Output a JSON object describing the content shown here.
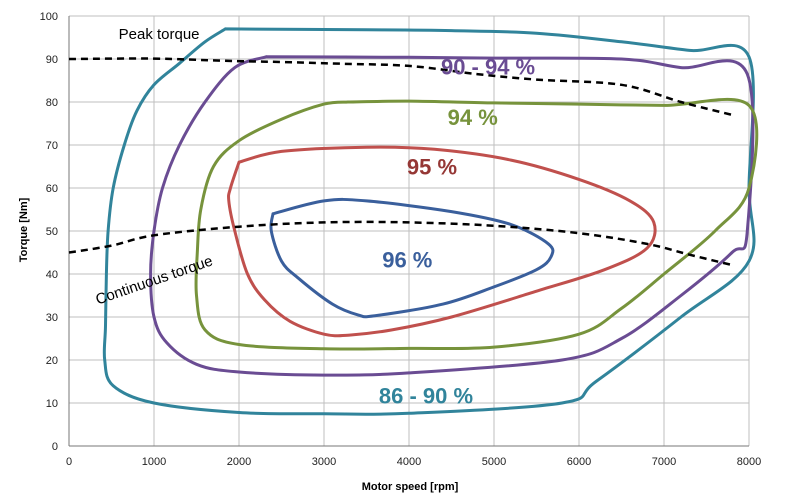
{
  "chart_data": {
    "type": "line",
    "title": "",
    "xlabel": "Motor speed [rpm]",
    "ylabel": "Torque [Nm]",
    "xlim": [
      0,
      8000
    ],
    "ylim": [
      0,
      100
    ],
    "x_ticks": [
      "0",
      "1000",
      "2000",
      "3000",
      "4000",
      "5000",
      "6000",
      "7000",
      "8000"
    ],
    "y_ticks": [
      "0",
      "10",
      "20",
      "30",
      "40",
      "50",
      "60",
      "70",
      "80",
      "90",
      "100"
    ],
    "grid": true,
    "legend": "none",
    "series": [
      {
        "name": "86 - 90 %",
        "color": "#31849b",
        "points": [
          [
            1840,
            97
          ],
          [
            3500,
            96.8
          ],
          [
            4500,
            96.6
          ],
          [
            5500,
            96
          ],
          [
            6500,
            94
          ],
          [
            7300,
            92
          ],
          [
            8000,
            90.5
          ],
          [
            8000,
            60
          ],
          [
            8000,
            43
          ],
          [
            7200,
            30
          ],
          [
            6200,
            15
          ],
          [
            5800,
            10
          ],
          [
            4000,
            7.6
          ],
          [
            3000,
            7.5
          ],
          [
            2000,
            7.8
          ],
          [
            1000,
            10
          ],
          [
            520,
            14
          ],
          [
            420,
            20
          ],
          [
            430,
            28
          ],
          [
            440,
            40
          ],
          [
            460,
            50
          ],
          [
            520,
            60
          ],
          [
            650,
            70
          ],
          [
            800,
            78
          ],
          [
            1000,
            84
          ],
          [
            1300,
            89
          ],
          [
            1600,
            94
          ],
          [
            1840,
            97
          ]
        ]
      },
      {
        "name": "90 - 94 %",
        "color": "#6a4c93",
        "points": [
          [
            2320,
            90.5
          ],
          [
            4000,
            90.4
          ],
          [
            5000,
            90.2
          ],
          [
            6500,
            90
          ],
          [
            7200,
            88
          ],
          [
            7980,
            86.5
          ],
          [
            7980,
            50
          ],
          [
            7800,
            45
          ],
          [
            7200,
            35
          ],
          [
            6500,
            25
          ],
          [
            5800,
            20
          ],
          [
            4000,
            17
          ],
          [
            3000,
            16.5
          ],
          [
            2000,
            17.2
          ],
          [
            1500,
            19
          ],
          [
            1150,
            24
          ],
          [
            1000,
            30
          ],
          [
            960,
            40
          ],
          [
            1000,
            50
          ],
          [
            1100,
            60
          ],
          [
            1300,
            70
          ],
          [
            1600,
            80
          ],
          [
            1950,
            88
          ],
          [
            2320,
            90.5
          ]
        ]
      },
      {
        "name": "94 %",
        "color": "#77933c",
        "points": [
          [
            3280,
            80
          ],
          [
            4000,
            80.2
          ],
          [
            5000,
            79.8
          ],
          [
            6000,
            79.5
          ],
          [
            7000,
            79.2
          ],
          [
            8000,
            79.2
          ],
          [
            8000,
            60
          ],
          [
            7600,
            50
          ],
          [
            7000,
            40
          ],
          [
            6500,
            32
          ],
          [
            6000,
            26
          ],
          [
            5000,
            23
          ],
          [
            4000,
            22.7
          ],
          [
            3000,
            22.6
          ],
          [
            2000,
            23.6
          ],
          [
            1600,
            27
          ],
          [
            1500,
            35
          ],
          [
            1510,
            45
          ],
          [
            1550,
            55
          ],
          [
            1700,
            65
          ],
          [
            2000,
            71
          ],
          [
            2500,
            76
          ],
          [
            3000,
            79.5
          ],
          [
            3280,
            80
          ]
        ]
      },
      {
        "name": "95 %",
        "color": "#c0504d",
        "points": [
          [
            2000,
            66
          ],
          [
            2500,
            68.5
          ],
          [
            3500,
            69.5
          ],
          [
            4300,
            69
          ],
          [
            5200,
            66.5
          ],
          [
            6000,
            62
          ],
          [
            6600,
            57
          ],
          [
            6880,
            52
          ],
          [
            6800,
            46
          ],
          [
            6300,
            41
          ],
          [
            5500,
            36
          ],
          [
            4500,
            30
          ],
          [
            3800,
            27
          ],
          [
            3300,
            25.8
          ],
          [
            3000,
            26
          ],
          [
            2600,
            29
          ],
          [
            2300,
            34
          ],
          [
            2100,
            40
          ],
          [
            1950,
            50
          ],
          [
            1880,
            57
          ],
          [
            1900,
            60
          ],
          [
            2000,
            66
          ]
        ]
      },
      {
        "name": "96 %",
        "color": "#3a5f9c",
        "points": [
          [
            2400,
            54
          ],
          [
            3000,
            57
          ],
          [
            3500,
            57
          ],
          [
            4500,
            54.5
          ],
          [
            5200,
            51.5
          ],
          [
            5640,
            47
          ],
          [
            5670,
            44
          ],
          [
            5500,
            41
          ],
          [
            5000,
            37
          ],
          [
            4400,
            33
          ],
          [
            3600,
            30.3
          ],
          [
            3400,
            30.5
          ],
          [
            3100,
            33
          ],
          [
            2700,
            39
          ],
          [
            2500,
            43
          ],
          [
            2380,
            50
          ],
          [
            2400,
            54
          ]
        ]
      },
      {
        "name": "Peak torque",
        "color": "#000000",
        "dashed": true,
        "points": [
          [
            0,
            90
          ],
          [
            1000,
            90.1
          ],
          [
            1800,
            89.6
          ],
          [
            2500,
            89.3
          ],
          [
            3200,
            88.9
          ],
          [
            4000,
            88.4
          ],
          [
            4800,
            86.5
          ],
          [
            5500,
            85.2
          ],
          [
            6500,
            84
          ],
          [
            7200,
            80
          ],
          [
            7800,
            77
          ]
        ]
      },
      {
        "name": "Continuous torque",
        "color": "#000000",
        "dashed": true,
        "points": [
          [
            0,
            45
          ],
          [
            500,
            46.6
          ],
          [
            1000,
            49
          ],
          [
            2000,
            51
          ],
          [
            3000,
            52
          ],
          [
            4000,
            52
          ],
          [
            5000,
            51.2
          ],
          [
            6000,
            49.5
          ],
          [
            6800,
            47
          ],
          [
            7300,
            44.5
          ],
          [
            7800,
            42.1
          ]
        ]
      }
    ],
    "annotations": [
      {
        "text": "Peak torque",
        "kind": "env",
        "x": 1060,
        "y": 94.7,
        "rotate": 0
      },
      {
        "text": "Continuous torque",
        "kind": "env",
        "x": 1020,
        "y": 37.5,
        "rotate": -19
      },
      {
        "text": "90 - 94 %",
        "kind": "big",
        "color": "#6a4c93",
        "x": 4930,
        "y": 86.4,
        "rotate": 0
      },
      {
        "text": "94 %",
        "kind": "big",
        "color": "#77933c",
        "x": 4750,
        "y": 74.6,
        "rotate": 0
      },
      {
        "text": "95 %",
        "kind": "big",
        "color": "#953735",
        "x": 4270,
        "y": 63.1,
        "rotate": 0
      },
      {
        "text": "96 %",
        "kind": "big",
        "color": "#3a5f9c",
        "x": 3980,
        "y": 41.5,
        "rotate": 0
      },
      {
        "text": "86 - 90 %",
        "kind": "big",
        "color": "#31849b",
        "x": 4200,
        "y": 9.9,
        "rotate": 0
      }
    ]
  }
}
